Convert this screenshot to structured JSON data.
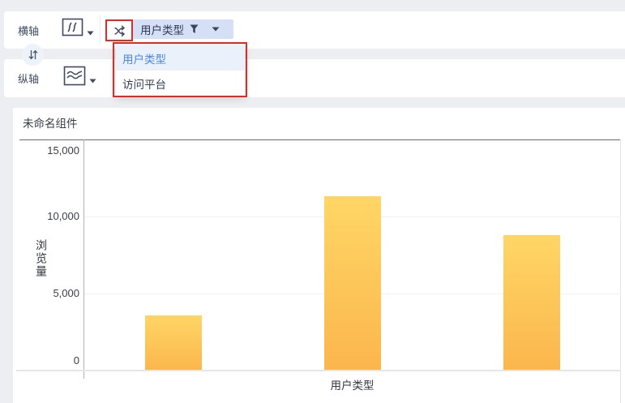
{
  "toolbar": {
    "horizontal_axis_label": "横轴",
    "vertical_axis_label": "纵轴",
    "field_pill": {
      "label": "用户类型"
    },
    "dropdown": {
      "items": [
        {
          "label": "用户类型",
          "selected": true
        },
        {
          "label": "访问平台",
          "selected": false
        }
      ]
    },
    "icons": [
      "dimension-chart-icon",
      "line-chart-icon",
      "shuffle-icon",
      "swap-vertical-icon",
      "filter-funnel-icon",
      "caret-down-icon"
    ]
  },
  "annotations": {
    "highlight_color": "#DF2B24"
  },
  "panel": {
    "title": "未命名组件"
  },
  "chart_data": {
    "type": "bar",
    "title": "未命名组件",
    "categories": [
      "",
      "",
      ""
    ],
    "values": [
      3600,
      11300,
      8800
    ],
    "xlabel": "用户类型",
    "ylabel": "浏览量",
    "ylim": [
      0,
      15000
    ],
    "yticks": [
      0,
      5000,
      10000,
      15000
    ],
    "ytick_labels": [
      "0",
      "5,000",
      "10,000",
      "15,000"
    ],
    "grid": true,
    "legend": false,
    "bar_color_top": "#FFD666",
    "bar_color_bottom": "#FBB64C"
  },
  "colors": {
    "page_background": "#ECEEF1",
    "card_background": "#FFFFFF",
    "pill_background": "#D5DFF6",
    "pill_text": "#2F3C55",
    "dropdown_selected_bg": "#EAF1FB",
    "dropdown_selected_text": "#4B86E3",
    "annotation_red": "#DF2B24",
    "icon_stroke": "#3D4A63"
  }
}
